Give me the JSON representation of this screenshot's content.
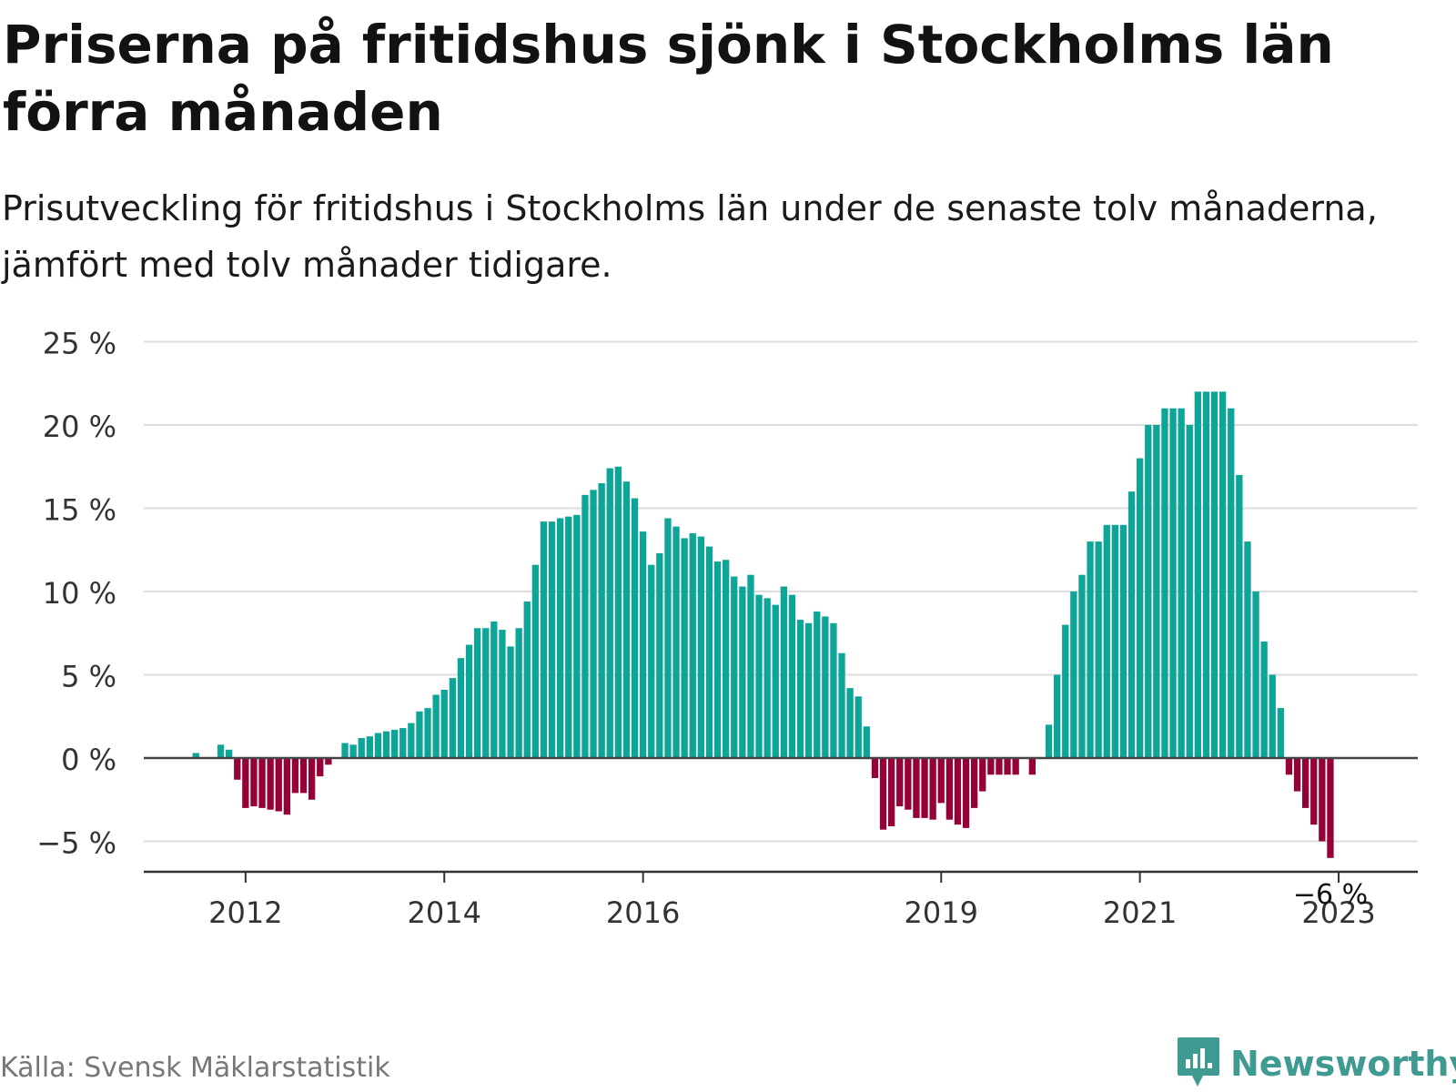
{
  "title": "Priserna på fritidshus sjönk i Stockholms län förra månaden",
  "subtitle": "Prisutveckling för fritidshus i Stockholms län under de senaste tolv månaderna, jämfört med tolv månader tidigare.",
  "source": "Källa: Svensk Mäklarstatistik",
  "brand": {
    "name": "Newsworthy",
    "icon": "bar-chart-speech-bubble-icon"
  },
  "colors": {
    "positive": "#0da597",
    "negative": "#960038",
    "grid": "#dddddd",
    "axis": "#333333",
    "brand": "#3f9a91"
  },
  "chart_data": {
    "type": "bar",
    "x_axis": "monthly, January 2011 – April 2023",
    "ylim": [
      -6.8,
      25
    ],
    "yticks": [
      -5,
      0,
      5,
      10,
      15,
      20,
      25
    ],
    "ytick_labels": [
      "−5 %",
      "0 %",
      "5 %",
      "10 %",
      "15 %",
      "20 %",
      "25 %"
    ],
    "xtick_labels": [
      "2012",
      "2014",
      "2016",
      "2019",
      "2021",
      "2023"
    ],
    "grid": true,
    "last_value_label": "−6 %",
    "values": [
      null,
      null,
      null,
      null,
      null,
      null,
      0.3,
      null,
      null,
      0.8,
      0.5,
      -1.3,
      -3.0,
      -2.9,
      -3.0,
      -3.1,
      -3.2,
      -3.4,
      -2.1,
      -2.1,
      -2.5,
      -1.1,
      -0.4,
      null,
      0.9,
      0.8,
      1.2,
      1.3,
      1.5,
      1.6,
      1.7,
      1.8,
      2.1,
      2.8,
      3.0,
      3.8,
      4.1,
      4.8,
      6.0,
      6.8,
      7.8,
      7.8,
      8.2,
      7.7,
      6.7,
      7.8,
      9.4,
      11.6,
      14.2,
      14.2,
      14.4,
      14.5,
      14.6,
      15.8,
      16.1,
      16.5,
      17.4,
      17.5,
      16.6,
      15.6,
      13.6,
      11.6,
      12.3,
      14.4,
      13.9,
      13.2,
      13.5,
      13.3,
      12.7,
      11.8,
      11.9,
      10.9,
      10.3,
      11.0,
      9.8,
      9.6,
      9.2,
      10.3,
      9.8,
      8.3,
      8.1,
      8.8,
      8.5,
      8.1,
      6.3,
      4.2,
      3.7,
      1.9,
      -1.2,
      -4.3,
      -4.1,
      -2.9,
      -3.1,
      -3.6,
      -3.6,
      -3.7,
      -2.7,
      -3.7,
      -4.0,
      -4.2,
      -3.0,
      -2.0,
      -1.0,
      -1.0,
      -1.0,
      -1.0,
      null,
      -1.0,
      null,
      2.0,
      5.0,
      8.0,
      10.0,
      11.0,
      13.0,
      13.0,
      14.0,
      14.0,
      14.0,
      16.0,
      18.0,
      20.0,
      20.0,
      21.0,
      21.0,
      21.0,
      20.0,
      22.0,
      22.0,
      22.0,
      22.0,
      21.0,
      17.0,
      13.0,
      10.0,
      7.0,
      5.0,
      3.0,
      -1.0,
      -2.0,
      -3.0,
      -4.0,
      -5.0,
      -6.0
    ]
  }
}
